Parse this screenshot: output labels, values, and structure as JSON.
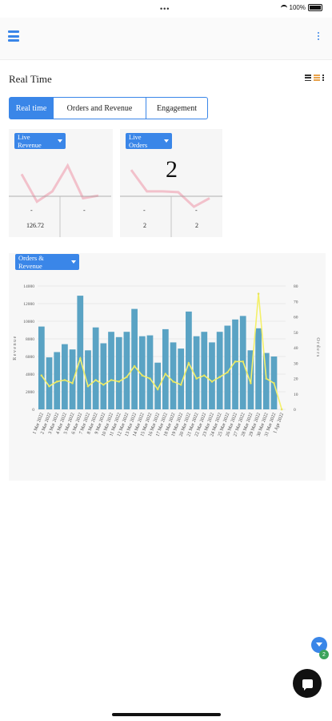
{
  "status": {
    "dots": "•••",
    "battery": "100%"
  },
  "page": {
    "title": "Real Time"
  },
  "tabs": [
    {
      "label": "Real time",
      "active": true
    },
    {
      "label": "Orders and Revenue",
      "active": false
    },
    {
      "label": "Engagement",
      "active": false
    }
  ],
  "revenue_card": {
    "dropdown": "Live Revenue",
    "left_dash": "-",
    "left_value": "126.72",
    "right_dash": "-",
    "sparkline": [
      50,
      18,
      30,
      60,
      22,
      25
    ]
  },
  "orders_card": {
    "dropdown": "Live Orders",
    "big_value": "2",
    "left_dash": "-",
    "left_value": "2",
    "right_dash": "-",
    "right_value": "2",
    "sparkline": [
      55,
      30,
      30,
      29,
      12,
      22
    ]
  },
  "main_chart": {
    "dropdown": "Orders & Revenue"
  },
  "chart_data": {
    "type": "bar",
    "title": "",
    "xlabel": "",
    "ylabel": "Revenue",
    "y2label": "Orders",
    "ylim": [
      0,
      14000
    ],
    "y2lim": [
      0,
      80
    ],
    "yticks": [
      "0",
      "2000",
      "4000",
      "6000",
      "8000",
      "10000",
      "12000",
      "14000"
    ],
    "y2ticks": [
      "0",
      "10",
      "20",
      "30",
      "40",
      "50",
      "60",
      "70",
      "80"
    ],
    "grid": true,
    "categories": [
      "1 Mar 2022",
      "2 Mar 2022",
      "3 Mar 2022",
      "4 Mar 2022",
      "5 Mar 2022",
      "6 Mar 2022",
      "7 Mar 2022",
      "8 Mar 2022",
      "9 Mar 2022",
      "10 Mar 2022",
      "11 Mar 2022",
      "12 Mar 2022",
      "13 Mar 2022",
      "14 Mar 2022",
      "15 Mar 2022",
      "16 Mar 2022",
      "17 Mar 2022",
      "18 Mar 2022",
      "19 Mar 2022",
      "20 Mar 2022",
      "21 Mar 2022",
      "22 Mar 2022",
      "23 Mar 2022",
      "24 Mar 2022",
      "25 Mar 2022",
      "26 Mar 2022",
      "27 Mar 2022",
      "28 Mar 2022",
      "29 Mar 2022",
      "30 Mar 2022",
      "31 Mar 2022",
      "1 Apr 2022"
    ],
    "series": [
      {
        "name": "Revenue",
        "type": "bar",
        "color": "#5aa3c4",
        "values": [
          9400,
          5900,
          6500,
          7400,
          6800,
          12900,
          6700,
          9300,
          7500,
          8800,
          8200,
          8800,
          11400,
          8300,
          8400,
          5300,
          9100,
          7600,
          6900,
          11100,
          8300,
          8800,
          7600,
          8800,
          9500,
          10200,
          10600,
          6700,
          9200,
          6400,
          6000,
          0
        ]
      },
      {
        "name": "Orders",
        "type": "line",
        "color": "#f4f06a",
        "axis": "right",
        "values": [
          22,
          15,
          18,
          19,
          17,
          33,
          15,
          19,
          16,
          19,
          18,
          21,
          28,
          22,
          20,
          13,
          23,
          18,
          16,
          30,
          20,
          22,
          18,
          21,
          24,
          31,
          31,
          17,
          75,
          20,
          17,
          0
        ]
      }
    ]
  }
}
